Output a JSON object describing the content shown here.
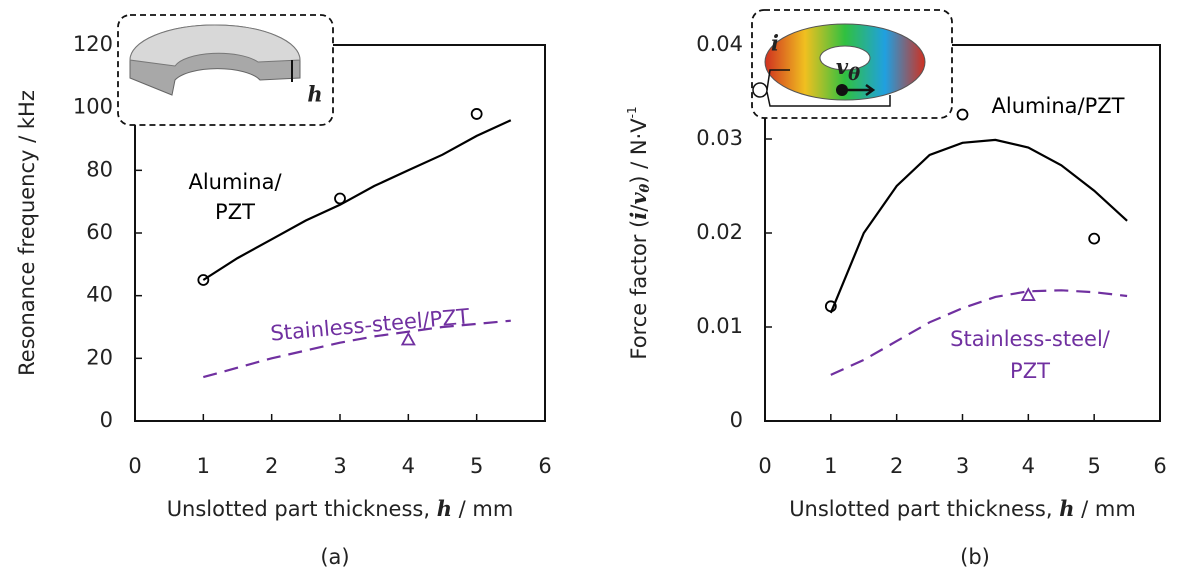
{
  "chart_data": [
    {
      "type": "scatter",
      "ylabel": [
        "Resonance frequency / kHz"
      ],
      "xlabel": [
        "Unslotted part thickness, ",
        "h",
        " / mm"
      ],
      "caption": "(a)",
      "xlim": [
        0,
        6
      ],
      "xticks": [
        0,
        1,
        2,
        3,
        4,
        5,
        6
      ],
      "ylim": [
        0,
        120
      ],
      "yticks": [
        0,
        20,
        40,
        60,
        80,
        100,
        120
      ],
      "grid": false,
      "inset_labels": [
        "h"
      ],
      "series": [
        {
          "label": [
            "Alumina/",
            "PZT"
          ],
          "color": "#000000",
          "marker": "circle",
          "x": [
            1,
            3,
            5
          ],
          "values": [
            45,
            71,
            98
          ],
          "fit": {
            "dash": false,
            "x": [
              1,
              1.5,
              2,
              2.5,
              3,
              3.5,
              4,
              4.5,
              5,
              5.5
            ],
            "values": [
              45,
              52,
              58,
              64,
              69,
              75,
              80,
              85,
              91,
              96
            ]
          }
        },
        {
          "label": [
            "Stainless-steel/PZT"
          ],
          "color": "#7030a0",
          "marker": "triangle",
          "x": [
            4
          ],
          "values": [
            26
          ],
          "fit": {
            "dash": true,
            "x": [
              1,
              1.5,
              2,
              2.5,
              3,
              3.5,
              4,
              4.5,
              5,
              5.5
            ],
            "values": [
              14,
              17,
              20,
              22.5,
              25,
              27,
              28.5,
              30,
              31,
              32
            ]
          }
        }
      ]
    },
    {
      "type": "scatter",
      "ylabel": [
        "Force factor (",
        "i",
        "/",
        "v",
        "θ",
        ") / N·V",
        "-1"
      ],
      "xlabel": [
        "Unslotted part thickness, ",
        "h",
        " / mm"
      ],
      "caption": "(b)",
      "xlim": [
        0,
        6
      ],
      "xticks": [
        0,
        1,
        2,
        3,
        4,
        5,
        6
      ],
      "ylim": [
        0,
        0.04
      ],
      "yticks": [
        0,
        0.01,
        0.02,
        0.03,
        0.04
      ],
      "grid": false,
      "inset_labels": [
        "i",
        "v",
        "θ"
      ],
      "series": [
        {
          "label": [
            "Alumina/PZT"
          ],
          "color": "#000000",
          "marker": "circle",
          "x": [
            1,
            3,
            5
          ],
          "values": [
            0.0122,
            0.0326,
            0.0194
          ],
          "fit": {
            "dash": false,
            "x": [
              1,
              1.5,
              2,
              2.5,
              3,
              3.5,
              4,
              4.5,
              5,
              5.5
            ],
            "values": [
              0.0115,
              0.02,
              0.025,
              0.0283,
              0.0296,
              0.0299,
              0.0291,
              0.0272,
              0.0245,
              0.0213
            ]
          }
        },
        {
          "label": [
            "Stainless-steel/",
            "PZT"
          ],
          "color": "#7030a0",
          "marker": "triangle",
          "x": [
            4
          ],
          "values": [
            0.0134
          ],
          "fit": {
            "dash": true,
            "x": [
              1,
              1.5,
              2,
              2.5,
              3,
              3.5,
              4,
              4.5,
              5,
              5.5
            ],
            "values": [
              0.0049,
              0.0065,
              0.0085,
              0.0105,
              0.012,
              0.0132,
              0.0138,
              0.0139,
              0.0137,
              0.0133
            ]
          }
        }
      ]
    }
  ]
}
